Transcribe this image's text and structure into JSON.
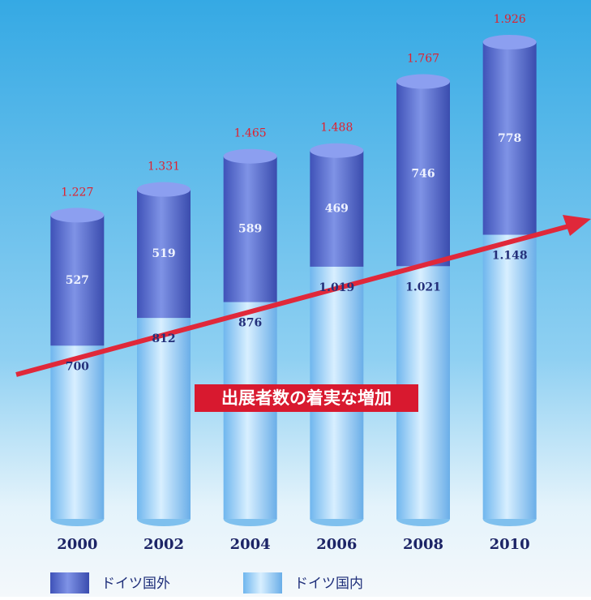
{
  "chart_data": {
    "type": "bar",
    "annotation": "出展者数の着実な増加",
    "categories": [
      "2000",
      "2002",
      "2004",
      "2006",
      "2008",
      "2010"
    ],
    "series": [
      {
        "name": "ドイツ国内",
        "color": "#a9d6f7",
        "values": [
          700,
          812,
          876,
          1019,
          1021,
          1148
        ],
        "value_labels": [
          "700",
          "812",
          "876",
          "1.019",
          "1.021",
          "1.148"
        ]
      },
      {
        "name": "ドイツ国外",
        "color": "#5a6fd2",
        "values": [
          527,
          519,
          589,
          469,
          746,
          778
        ]
      }
    ],
    "totals": [
      1227,
      1331,
      1465,
      1488,
      1767,
      1926
    ],
    "total_labels": [
      "1.227",
      "1.331",
      "1.465",
      "1.488",
      "1.767",
      "1.926"
    ]
  }
}
